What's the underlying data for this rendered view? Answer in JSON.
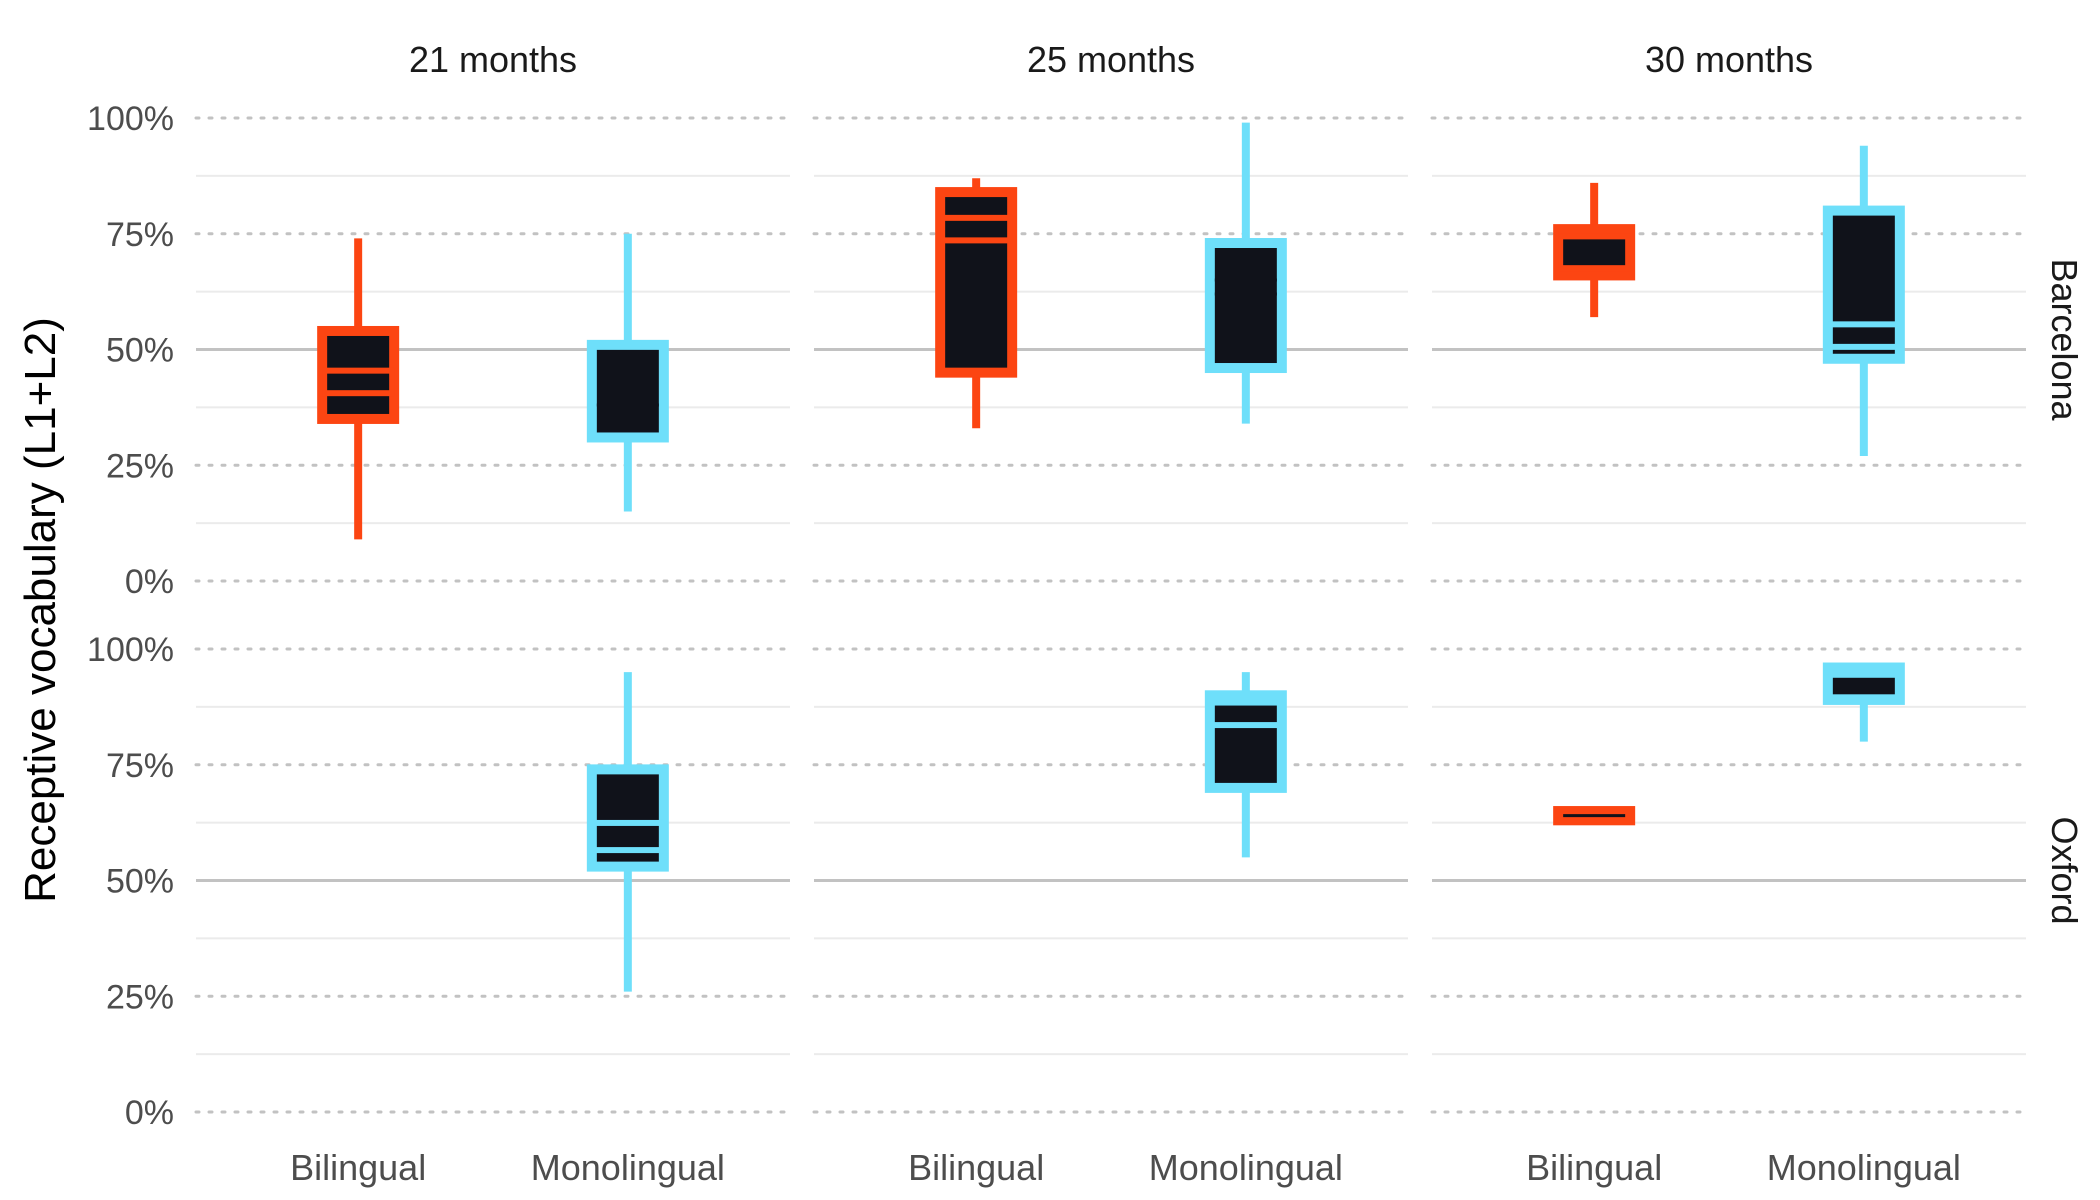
{
  "chart_data": {
    "type": "boxplot",
    "ylabel": "Receptive vocabulary (L1+L2)",
    "facet_cols": [
      "21 months",
      "25 months",
      "30 months"
    ],
    "facet_rows": [
      "Barcelona",
      "Oxford"
    ],
    "categories": [
      "Bilingual",
      "Monolingual"
    ],
    "y_ticks": [
      "0%",
      "25%",
      "50%",
      "75%",
      "100%"
    ],
    "ylim": [
      0,
      100
    ],
    "colors": {
      "Bilingual": "#FC4512",
      "Monolingual": "#6EDFFA",
      "fill": "#10121A",
      "grid": "#C2C2C2",
      "text": "#4D4D4D"
    },
    "boxes": [
      {
        "row": "Barcelona",
        "col": "21 months",
        "group": "Bilingual",
        "min": 9,
        "q1": 35,
        "mid_low": 41,
        "mid_high": 45,
        "q3": 54,
        "max": 74
      },
      {
        "row": "Barcelona",
        "col": "21 months",
        "group": "Monolingual",
        "min": 15,
        "q1": 31,
        "mid_low": 37.5,
        "mid_high": 38,
        "q3": 51,
        "max": 75
      },
      {
        "row": "Barcelona",
        "col": "25 months",
        "group": "Bilingual",
        "min": 33,
        "q1": 45,
        "mid_low": 78,
        "mid_high": 74,
        "q3": 84,
        "max": 87
      },
      {
        "row": "Barcelona",
        "col": "25 months",
        "group": "Monolingual",
        "min": 34,
        "q1": 46,
        "mid_low": 62,
        "mid_high": 65,
        "q3": 73,
        "max": 99
      },
      {
        "row": "Barcelona",
        "col": "30 months",
        "group": "Bilingual",
        "min": 57,
        "q1": 66,
        "mid_low": 68,
        "mid_high": 74,
        "q3": 76,
        "max": 86
      },
      {
        "row": "Barcelona",
        "col": "30 months",
        "group": "Monolingual",
        "min": 27,
        "q1": 48,
        "mid_low": 51,
        "mid_high": 55,
        "q3": 80,
        "max": 94
      },
      {
        "row": "Oxford",
        "col": "21 months",
        "group": "Monolingual",
        "min": 26,
        "q1": 53,
        "mid_low": 57,
        "mid_high": 62,
        "q3": 74,
        "max": 95
      },
      {
        "row": "Oxford",
        "col": "25 months",
        "group": "Monolingual",
        "min": 55,
        "q1": 70,
        "mid_low": 84,
        "mid_high": 88,
        "q3": 90,
        "max": 95
      },
      {
        "row": "Oxford",
        "col": "30 months",
        "group": "Bilingual",
        "min": 63,
        "q1": 63,
        "mid_low": 64,
        "mid_high": 64,
        "q3": 65,
        "max": 65
      },
      {
        "row": "Oxford",
        "col": "30 months",
        "group": "Monolingual",
        "min": 80,
        "q1": 89,
        "mid_low": 90,
        "mid_high": 94,
        "q3": 96,
        "max": 97
      }
    ]
  }
}
